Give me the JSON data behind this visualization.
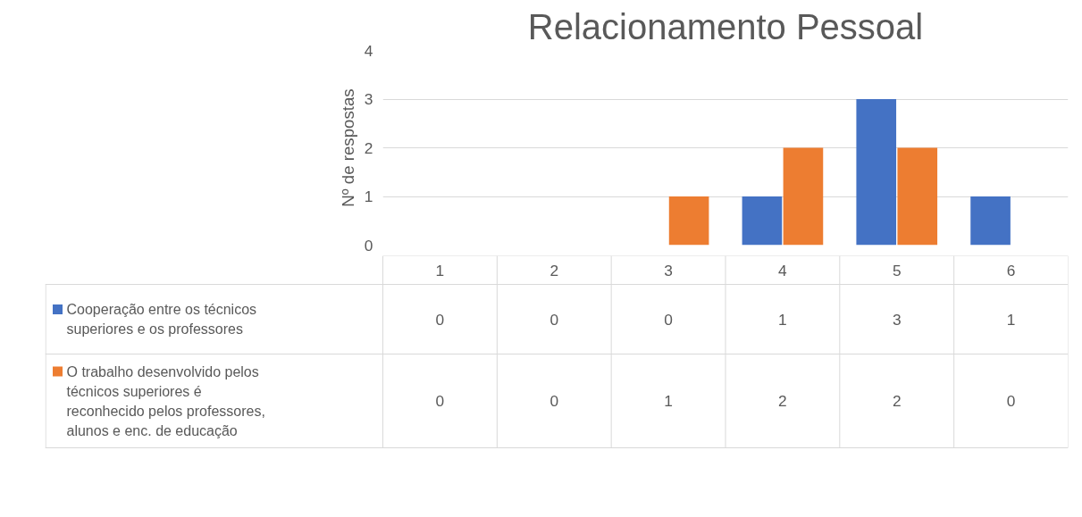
{
  "chart_data": {
    "type": "bar",
    "title": "Relacionamento Pessoal",
    "ylabel": "Nº de respostas",
    "categories": [
      "1",
      "2",
      "3",
      "4",
      "5",
      "6"
    ],
    "series": [
      {
        "name": "Cooperação entre os técnicos superiores e os professores",
        "color": "#4472c4",
        "values": [
          0,
          0,
          0,
          1,
          3,
          1
        ]
      },
      {
        "name": "O trabalho desenvolvido pelos técnicos superiores é reconhecido pelos professores, alunos e enc. de educação",
        "color": "#ed7d31",
        "values": [
          0,
          0,
          1,
          2,
          2,
          0
        ]
      }
    ],
    "ylim": [
      0,
      4
    ],
    "yticks": [
      0,
      1,
      2,
      3,
      4
    ],
    "grid": "y",
    "legend": "bottom",
    "data_labels": true
  }
}
